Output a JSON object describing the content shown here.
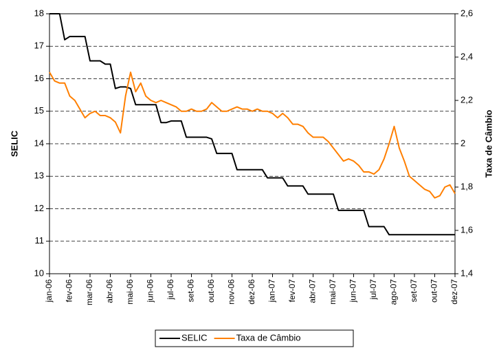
{
  "chart_data": {
    "type": "line",
    "y_label": "SELIC",
    "y2_label": "Taxa de Câmbio",
    "categories": [
      "jan-06",
      null,
      null,
      null,
      "fev-06",
      null,
      null,
      null,
      "mar-06",
      null,
      null,
      null,
      "abr-06",
      null,
      null,
      null,
      "mai-06",
      null,
      null,
      null,
      "jun-06",
      null,
      null,
      null,
      "jul-06",
      null,
      null,
      null,
      "set-06",
      null,
      null,
      null,
      "out-06",
      null,
      null,
      null,
      "nov-06",
      null,
      null,
      null,
      "dez-06",
      null,
      null,
      null,
      "jan-07",
      null,
      null,
      null,
      "fev-07",
      null,
      null,
      null,
      "abr-07",
      null,
      null,
      null,
      "mai-07",
      null,
      null,
      null,
      "jun-07",
      null,
      null,
      null,
      "jul-07",
      null,
      null,
      null,
      "ago-07",
      null,
      null,
      null,
      "set-07",
      null,
      null,
      null,
      "out-07",
      null,
      null,
      null,
      "dez-07"
    ],
    "series": [
      {
        "name": "SELIC",
        "color": "#000000",
        "axis": "y",
        "values": [
          18,
          18,
          18,
          17.2,
          17.3,
          17.3,
          17.3,
          17.3,
          16.55,
          16.55,
          16.55,
          16.45,
          16.45,
          15.7,
          15.75,
          15.75,
          15.7,
          15.2,
          15.2,
          15.2,
          15.2,
          15.2,
          14.65,
          14.65,
          14.7,
          14.7,
          14.7,
          14.2,
          14.2,
          14.2,
          14.2,
          14.2,
          14.15,
          13.7,
          13.7,
          13.7,
          13.7,
          13.2,
          13.2,
          13.2,
          13.2,
          13.2,
          13.2,
          12.95,
          12.95,
          12.95,
          12.95,
          12.7,
          12.7,
          12.7,
          12.7,
          12.45,
          12.45,
          12.45,
          12.45,
          12.45,
          12.45,
          11.95,
          11.95,
          11.95,
          11.95,
          11.95,
          11.95,
          11.45,
          11.45,
          11.45,
          11.45,
          11.2,
          11.2,
          11.2,
          11.2,
          11.2,
          11.2,
          11.2,
          11.2,
          11.2,
          11.2,
          11.2,
          11.2,
          11.2,
          11.2
        ]
      },
      {
        "name": "Taxa de Câmbio",
        "color": "#ff7f00",
        "axis": "y2",
        "values": [
          2.33,
          2.29,
          2.28,
          2.28,
          2.22,
          2.2,
          2.16,
          2.12,
          2.14,
          2.15,
          2.13,
          2.13,
          2.12,
          2.1,
          2.05,
          2.22,
          2.33,
          2.24,
          2.28,
          2.22,
          2.2,
          2.19,
          2.2,
          2.19,
          2.18,
          2.17,
          2.15,
          2.15,
          2.16,
          2.15,
          2.15,
          2.16,
          2.19,
          2.17,
          2.15,
          2.15,
          2.16,
          2.17,
          2.16,
          2.16,
          2.15,
          2.16,
          2.15,
          2.15,
          2.14,
          2.12,
          2.14,
          2.12,
          2.09,
          2.09,
          2.08,
          2.05,
          2.03,
          2.03,
          2.03,
          2.01,
          1.98,
          1.95,
          1.92,
          1.93,
          1.92,
          1.9,
          1.87,
          1.87,
          1.86,
          1.88,
          1.93,
          2.0,
          2.08,
          1.98,
          1.92,
          1.85,
          1.83,
          1.81,
          1.79,
          1.78,
          1.75,
          1.76,
          1.8,
          1.81,
          1.77
        ]
      }
    ],
    "ylim": [
      10,
      18
    ],
    "yticks": [
      10,
      11,
      12,
      13,
      14,
      15,
      16,
      17,
      18
    ],
    "y2lim": [
      1.4,
      2.6
    ],
    "y2ticks": [
      {
        "value": 1.4,
        "label": "1,4"
      },
      {
        "value": 1.6,
        "label": "1,6"
      },
      {
        "value": 1.8,
        "label": "1,8"
      },
      2,
      {
        "value": 2.2,
        "label": "2,2"
      },
      {
        "value": 2.4,
        "label": "2,4"
      },
      {
        "value": 2.6,
        "label": "2,6"
      }
    ],
    "grid": true,
    "legend": "bottom"
  }
}
